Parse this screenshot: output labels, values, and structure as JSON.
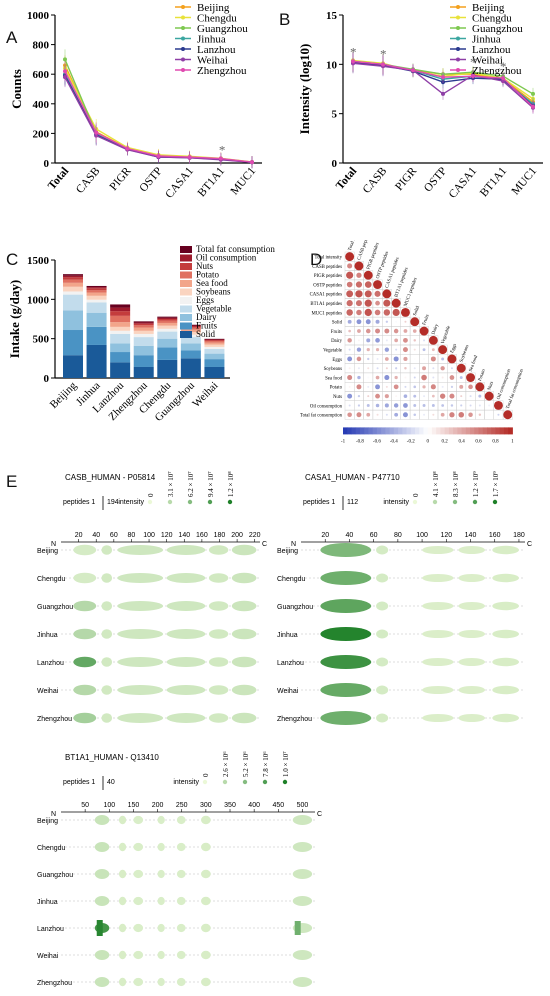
{
  "colors": {
    "Beijing": "#f4a11d",
    "Chengdu": "#e8e23a",
    "Guangzhou": "#7ec850",
    "Jinhua": "#3ba6a0",
    "Lanzhou": "#2b3a8f",
    "Weihai": "#8e3ea6",
    "Zhengzhou": "#e04ab0"
  },
  "panels": {
    "A": "A",
    "B": "B",
    "C": "C",
    "D": "D",
    "E": "E"
  },
  "panel_a": {
    "ylabel": "Counts",
    "categories": [
      "Total",
      "CASB",
      "PIGR",
      "OSTP",
      "CASA1",
      "BT1A1",
      "MUC1"
    ],
    "yticks": [
      "0",
      "200",
      "400",
      "600",
      "800",
      "1000"
    ],
    "ylim": [
      0,
      1000
    ],
    "star": "*",
    "series": [
      {
        "name": "Beijing",
        "values": [
          660,
          210,
          100,
          50,
          40,
          30,
          6
        ]
      },
      {
        "name": "Chengdu",
        "values": [
          640,
          230,
          105,
          55,
          45,
          32,
          7
        ]
      },
      {
        "name": "Guangzhou",
        "values": [
          700,
          200,
          95,
          45,
          38,
          28,
          5
        ]
      },
      {
        "name": "Jinhua",
        "values": [
          600,
          195,
          95,
          42,
          38,
          27,
          5
        ]
      },
      {
        "name": "Lanzhou",
        "values": [
          590,
          190,
          92,
          40,
          36,
          25,
          5
        ]
      },
      {
        "name": "Weihai",
        "values": [
          580,
          185,
          90,
          40,
          35,
          22,
          5
        ]
      },
      {
        "name": "Zhengzhou",
        "values": [
          620,
          205,
          98,
          48,
          40,
          30,
          6
        ]
      }
    ]
  },
  "panel_b": {
    "ylabel": "Intensity (log10)",
    "categories": [
      "Total",
      "CASB",
      "PIGR",
      "OSTP",
      "CASA1",
      "BT1A1",
      "MUC1"
    ],
    "yticks": [
      "0",
      "5",
      "10",
      "15"
    ],
    "ylim": [
      0,
      15
    ],
    "star": "*",
    "series": [
      {
        "name": "Beijing",
        "values": [
          10.3,
          10.0,
          9.4,
          9.0,
          9.0,
          8.5,
          6.2
        ]
      },
      {
        "name": "Chengdu",
        "values": [
          10.4,
          10.1,
          9.3,
          8.8,
          9.1,
          8.6,
          6.5
        ]
      },
      {
        "name": "Guangzhou",
        "values": [
          10.2,
          10.0,
          9.5,
          9.0,
          9.2,
          8.8,
          7.0
        ]
      },
      {
        "name": "Jinhua",
        "values": [
          10.3,
          10.0,
          9.4,
          8.5,
          8.8,
          8.4,
          6.0
        ]
      },
      {
        "name": "Lanzhou",
        "values": [
          10.2,
          9.9,
          9.3,
          8.2,
          8.6,
          8.5,
          5.8
        ]
      },
      {
        "name": "Weihai",
        "values": [
          10.1,
          9.8,
          9.4,
          7.0,
          8.9,
          8.3,
          5.6
        ]
      },
      {
        "name": "Zhengzhou",
        "values": [
          10.3,
          10.0,
          9.4,
          8.7,
          8.8,
          8.6,
          5.7
        ]
      }
    ]
  },
  "panel_c": {
    "ylabel": "Intake (g/day)",
    "categories": [
      "Beijing",
      "Jinhua",
      "Lanzhou",
      "Zhengzhou",
      "Chengdu",
      "Guangzhou",
      "Weihai"
    ],
    "yticks": [
      "0",
      "500",
      "1000",
      "1500"
    ],
    "ylim": [
      0,
      1500
    ],
    "legend": [
      "Total fat consumption",
      "Oil consumption",
      "Nuts",
      "Potato",
      "Sea food",
      "Soybeans",
      "Eggs",
      "Vegetable",
      "Dairy",
      "Fruits",
      "Solid"
    ],
    "legend_colors": [
      "#67001f",
      "#9e1a2c",
      "#c43c3c",
      "#e07060",
      "#f2a58a",
      "#fad4c0",
      "#f2f2f2",
      "#c2dcec",
      "#8fc1de",
      "#4a93c4",
      "#1a5a99"
    ],
    "stacks": [
      [
        20,
        20,
        30,
        40,
        50,
        60,
        40,
        200,
        250,
        320,
        290
      ],
      [
        15,
        15,
        25,
        30,
        40,
        50,
        35,
        130,
        180,
        230,
        420
      ],
      [
        40,
        45,
        60,
        80,
        60,
        50,
        40,
        120,
        110,
        130,
        200
      ],
      [
        15,
        15,
        20,
        30,
        40,
        40,
        40,
        110,
        120,
        150,
        140
      ],
      [
        15,
        15,
        20,
        30,
        35,
        40,
        35,
        90,
        110,
        160,
        230
      ],
      [
        10,
        12,
        15,
        25,
        30,
        35,
        30,
        80,
        90,
        100,
        250
      ],
      [
        8,
        8,
        12,
        20,
        25,
        30,
        25,
        60,
        70,
        100,
        140
      ]
    ]
  },
  "panel_d": {
    "labels": [
      "Total intensity",
      "CASB peptides",
      "PIGR peptides",
      "OSTP peptides",
      "CASA1 peptides",
      "BT1A1 peptides",
      "MUC1 peptides",
      "Solid",
      "Fruits",
      "Dairy",
      "Vegetable",
      "Eggs",
      "Soybeans",
      "Sea food",
      "Potato",
      "Nuts",
      "Oil consumption",
      "Total fat consumption"
    ],
    "scale": [
      "-1",
      "-0.8",
      "-0.6",
      "-0.4",
      "-0.2",
      "0",
      "0.2",
      "0.4",
      "0.6",
      "0.8",
      "1"
    ]
  },
  "panel_e": [
    {
      "title": "CASB_HUMAN - P05814",
      "peptides_label": "peptides 1",
      "peptides_max": "194",
      "intensity_label": "intensity",
      "legend": [
        "0",
        "3.1 × 10⁷",
        "6.2 × 10⁷",
        "9.4 × 10⁷",
        "1.2 × 10⁸"
      ],
      "axis": [
        "20",
        "40",
        "60",
        "80",
        "100",
        "120",
        "140",
        "160",
        "180",
        "200",
        "220"
      ],
      "axis_max": 226,
      "n": "N",
      "c": "C",
      "cities": [
        "Beijing",
        "Chengdu",
        "Guangzhou",
        "Jinhua",
        "Lanzhou",
        "Weihai",
        "Zhengzhou"
      ],
      "blobs": [
        [
          14,
          40,
          0.35
        ],
        [
          46,
          58,
          0.25
        ],
        [
          64,
          116,
          0.3
        ],
        [
          120,
          164,
          0.3
        ],
        [
          168,
          190,
          0.25
        ],
        [
          194,
          222,
          0.35
        ]
      ],
      "hot": [
        0,
        0,
        0.2,
        0.2,
        0.7,
        0.2,
        0.3
      ]
    },
    {
      "title": "CASA1_HUMAN - P47710",
      "peptides_label": "peptides 1",
      "peptides_max": "112",
      "intensity_label": "intensity",
      "legend": [
        "0",
        "4.1 × 10⁸",
        "8.3 × 10⁸",
        "1.2 × 10⁹",
        "1.7 × 10⁹"
      ],
      "axis": [
        "20",
        "40",
        "60",
        "80",
        "100",
        "120",
        "140",
        "160",
        "180"
      ],
      "axis_max": 185,
      "n": "N",
      "c": "C",
      "cities": [
        "Beijing",
        "Chengdu",
        "Guangzhou",
        "Jinhua",
        "Lanzhou",
        "Weihai",
        "Zhengzhou"
      ],
      "blobs": [
        [
          16,
          58,
          0.7
        ],
        [
          62,
          72,
          0.2
        ],
        [
          100,
          126,
          0.1
        ],
        [
          130,
          152,
          0.1
        ],
        [
          158,
          180,
          0.15
        ]
      ],
      "hot": [
        0.4,
        0.5,
        0.6,
        0.95,
        0.8,
        0.55,
        0.5
      ]
    },
    {
      "title": "BT1A1_HUMAN - Q13410",
      "peptides_label": "peptides 1",
      "peptides_max": "40",
      "intensity_label": "intensity",
      "legend": [
        "0",
        "2.6 × 10⁶",
        "5.2 × 10⁶",
        "7.8 × 10⁶",
        "1.0 × 10⁷"
      ],
      "axis": [
        "50",
        "100",
        "150",
        "200",
        "250",
        "300",
        "350",
        "400",
        "450",
        "500"
      ],
      "axis_max": 526,
      "n": "N",
      "c": "C",
      "cities": [
        "Beijing",
        "Chengdu",
        "Guangzhou",
        "Jinhua",
        "Lanzhou",
        "Weihai",
        "Zhengzhou"
      ],
      "blobs": [
        [
          70,
          100,
          0.3
        ],
        [
          120,
          135,
          0.15
        ],
        [
          150,
          170,
          0.12
        ],
        [
          200,
          215,
          0.12
        ],
        [
          240,
          258,
          0.12
        ],
        [
          290,
          310,
          0.15
        ],
        [
          480,
          520,
          0.3
        ]
      ],
      "hot": [
        0.1,
        0.1,
        0.1,
        0.1,
        0.9,
        0.1,
        0.1
      ]
    }
  ]
}
